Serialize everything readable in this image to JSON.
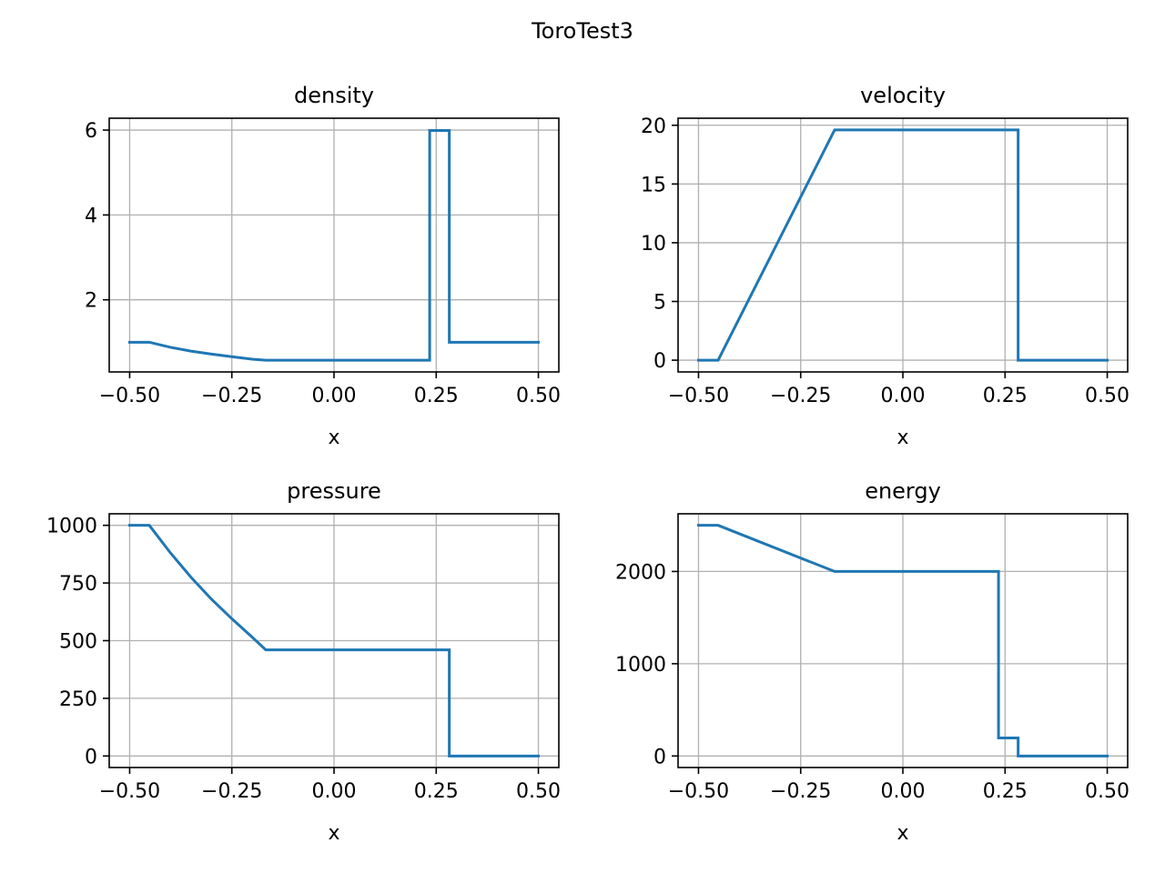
{
  "title": "ToroTest3",
  "colors": {
    "line": "#1f77b4",
    "grid": "#b0b0b0",
    "axes": "#000000"
  },
  "chart_data": [
    {
      "type": "line",
      "title": "density",
      "xlabel": "x",
      "ylabel": "",
      "grid": true,
      "xlim": [
        -0.55,
        0.55
      ],
      "ylim": [
        0.3,
        6.28
      ],
      "xticks": [
        -0.5,
        -0.25,
        0.0,
        0.25,
        0.5
      ],
      "xtick_labels": [
        "−0.50",
        "−0.25",
        "0.00",
        "0.25",
        "0.50"
      ],
      "yticks": [
        2,
        4,
        6
      ],
      "ytick_labels": [
        "2",
        "4",
        "6"
      ],
      "series": [
        {
          "x": [
            -0.5,
            -0.452,
            -0.4,
            -0.35,
            -0.3,
            -0.25,
            -0.2,
            -0.167,
            0.234,
            0.234,
            0.282,
            0.282,
            0.5
          ],
          "y": [
            1.0,
            1.0,
            0.88,
            0.79,
            0.72,
            0.66,
            0.6,
            0.575,
            0.575,
            5.99,
            5.99,
            1.0,
            1.0
          ]
        }
      ]
    },
    {
      "type": "line",
      "title": "velocity",
      "xlabel": "x",
      "ylabel": "",
      "grid": true,
      "xlim": [
        -0.55,
        0.55
      ],
      "ylim": [
        -1.0,
        20.6
      ],
      "xticks": [
        -0.5,
        -0.25,
        0.0,
        0.25,
        0.5
      ],
      "xtick_labels": [
        "−0.50",
        "−0.25",
        "0.00",
        "0.25",
        "0.50"
      ],
      "yticks": [
        0,
        5,
        10,
        15,
        20
      ],
      "ytick_labels": [
        "0",
        "5",
        "10",
        "15",
        "20"
      ],
      "series": [
        {
          "x": [
            -0.5,
            -0.452,
            -0.167,
            0.282,
            0.282,
            0.5
          ],
          "y": [
            0,
            0,
            19.6,
            19.6,
            0,
            0
          ]
        }
      ]
    },
    {
      "type": "line",
      "title": "pressure",
      "xlabel": "x",
      "ylabel": "",
      "grid": true,
      "xlim": [
        -0.55,
        0.55
      ],
      "ylim": [
        -50,
        1050
      ],
      "xticks": [
        -0.5,
        -0.25,
        0.0,
        0.25,
        0.5
      ],
      "xtick_labels": [
        "−0.50",
        "−0.25",
        "0.00",
        "0.25",
        "0.50"
      ],
      "yticks": [
        0,
        250,
        500,
        750,
        1000
      ],
      "ytick_labels": [
        "0",
        "250",
        "500",
        "750",
        "1000"
      ],
      "series": [
        {
          "x": [
            -0.5,
            -0.452,
            -0.4,
            -0.35,
            -0.3,
            -0.25,
            -0.2,
            -0.167,
            0.282,
            0.282,
            0.5
          ],
          "y": [
            1000,
            1000,
            880,
            775,
            680,
            595,
            515,
            460,
            460,
            0.01,
            0.01
          ]
        }
      ]
    },
    {
      "type": "line",
      "title": "energy",
      "xlabel": "x",
      "ylabel": "",
      "grid": true,
      "xlim": [
        -0.55,
        0.55
      ],
      "ylim": [
        -125,
        2625
      ],
      "xticks": [
        -0.5,
        -0.25,
        0.0,
        0.25,
        0.5
      ],
      "xtick_labels": [
        "−0.50",
        "−0.25",
        "0.00",
        "0.25",
        "0.50"
      ],
      "yticks": [
        0,
        1000,
        2000
      ],
      "ytick_labels": [
        "0",
        "1000",
        "2000"
      ],
      "series": [
        {
          "x": [
            -0.5,
            -0.452,
            -0.167,
            0.234,
            0.234,
            0.282,
            0.282,
            0.5
          ],
          "y": [
            2500,
            2500,
            2000,
            2000,
            195,
            195,
            0,
            0
          ]
        }
      ]
    }
  ]
}
